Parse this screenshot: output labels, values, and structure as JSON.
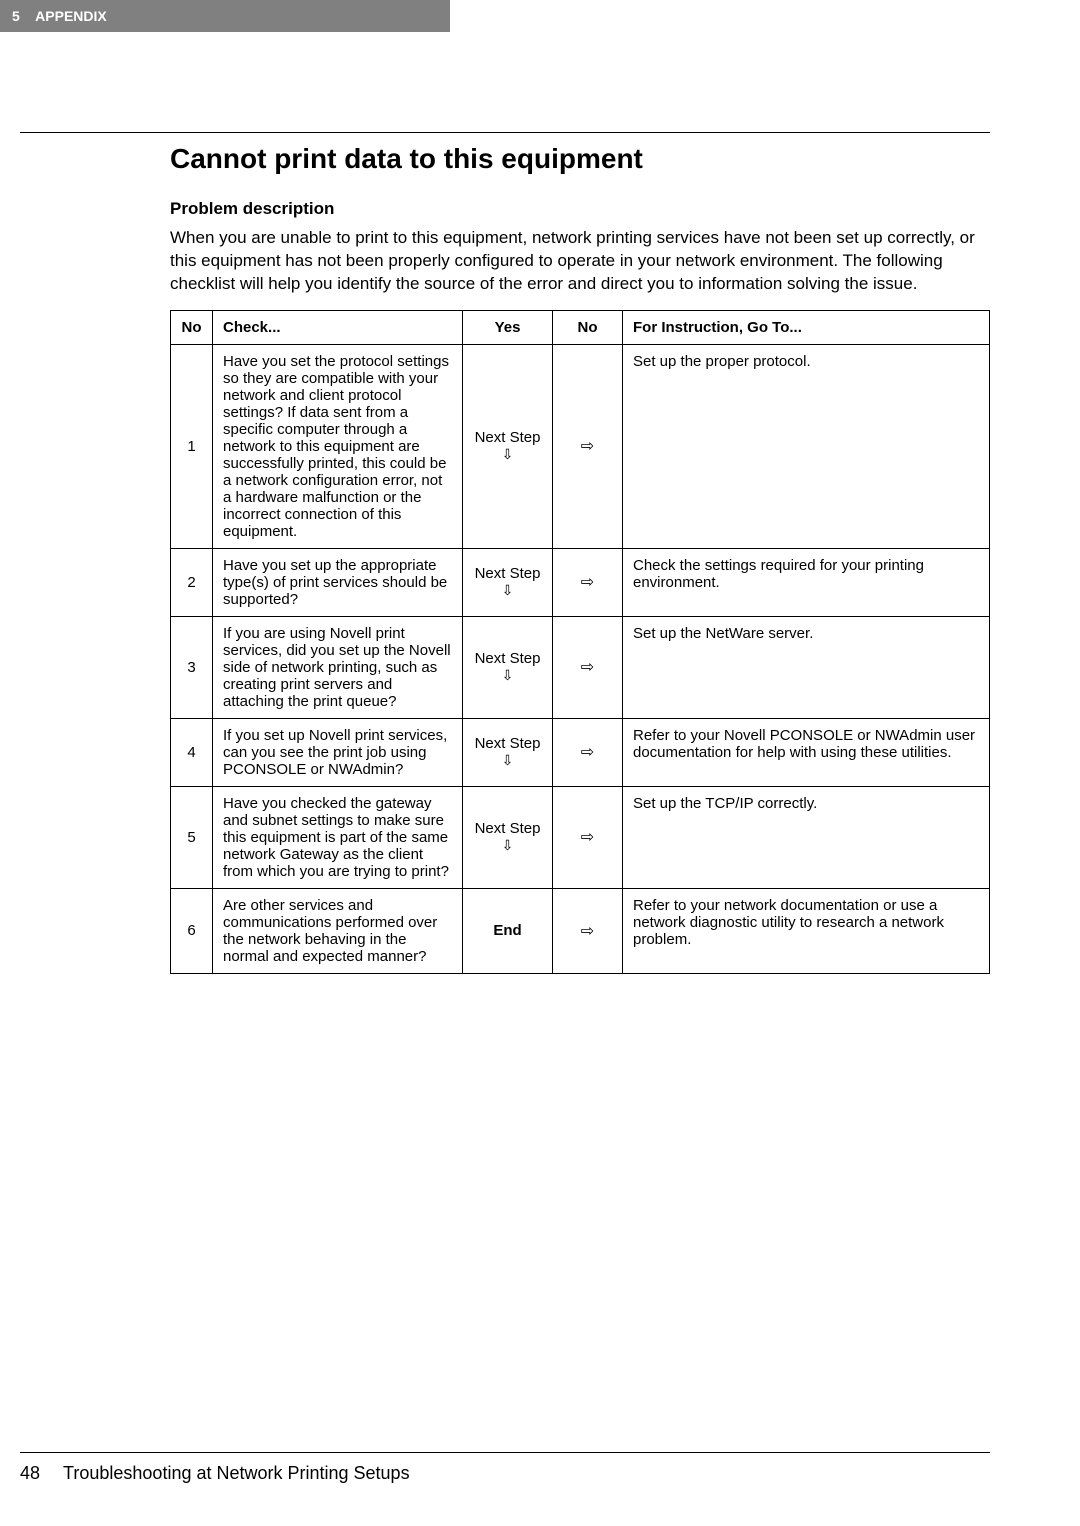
{
  "header": {
    "section_number": "5",
    "section_title": "APPENDIX"
  },
  "main": {
    "title": "Cannot print data to this equipment",
    "subtitle": "Problem description",
    "description": "When you are unable to print to this equipment, network printing services have not been set up correctly, or this equipment has not been properly configured to operate in your network environment. The following checklist will help you identify the source of the error and direct you to information solving the issue."
  },
  "table": {
    "headers": {
      "no": "No",
      "check": "Check...",
      "yes": "Yes",
      "no_col": "No",
      "instruction": "For Instruction, Go To..."
    },
    "next_step_label": "Next Step",
    "end_label": "End",
    "rows": [
      {
        "no": "1",
        "check": "Have you set the protocol settings so they are compatible with your network and client protocol settings?\nIf data sent from a specific computer through a network to this equipment are successfully printed, this could be a network configuration error, not a hardware malfunction or the incorrect connection of this equipment.",
        "yes_type": "next",
        "instruction": "Set up the proper protocol."
      },
      {
        "no": "2",
        "check": "Have you set up the appropriate type(s) of print services should be supported?",
        "yes_type": "next",
        "instruction": "Check the settings required for your printing environment."
      },
      {
        "no": "3",
        "check": "If you are using Novell print services, did you set up the Novell side of network printing, such as creating print servers and attaching the print queue?",
        "yes_type": "next",
        "instruction": "Set up the NetWare server."
      },
      {
        "no": "4",
        "check": "If you set up Novell print services, can you see the print job using PCONSOLE or NWAdmin?",
        "yes_type": "next",
        "instruction": "Refer to your Novell PCONSOLE or NWAdmin user documentation for help with using these utilities."
      },
      {
        "no": "5",
        "check": "Have you checked the gateway and subnet settings to make sure this equipment is part of the same network Gateway as the client from which you are trying to print?",
        "yes_type": "next",
        "instruction": "Set up the TCP/IP correctly."
      },
      {
        "no": "6",
        "check": "Are other services and communications performed over the network behaving in the normal and expected manner?",
        "yes_type": "end",
        "instruction": "Refer to your network documentation or use a network diagnostic utility to research a network problem."
      }
    ]
  },
  "footer": {
    "page": "48",
    "text": "Troubleshooting at Network Printing Setups"
  }
}
